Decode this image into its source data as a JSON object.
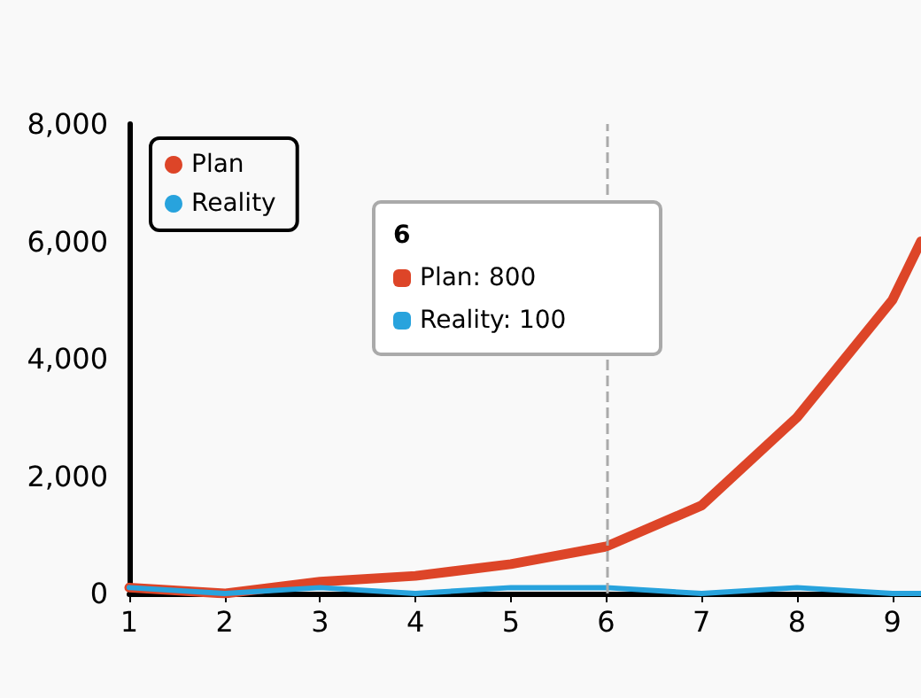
{
  "chart_data": {
    "type": "line",
    "x": [
      1,
      2,
      3,
      4,
      5,
      6,
      7,
      8,
      9,
      9.3
    ],
    "series": [
      {
        "name": "Plan",
        "color": "#dd4528",
        "values": [
          100,
          0,
          200,
          300,
          500,
          800,
          1500,
          3000,
          5000,
          6000
        ]
      },
      {
        "name": "Reality",
        "color": "#28a3dd",
        "values": [
          100,
          0,
          100,
          0,
          100,
          100,
          0,
          100,
          0,
          0
        ]
      }
    ],
    "xlim": [
      1,
      9.3
    ],
    "xticks": [
      1,
      2,
      3,
      4,
      5,
      6,
      7,
      8,
      9
    ],
    "ylim": [
      0,
      8000
    ],
    "yticks": [
      {
        "value": 0,
        "label": "0"
      },
      {
        "value": 2000,
        "label": "2,000"
      },
      {
        "value": 4000,
        "label": "4,000"
      },
      {
        "value": 6000,
        "label": "6,000"
      },
      {
        "value": 8000,
        "label": "8,000"
      }
    ],
    "ref_lines": [
      {
        "axis": "x",
        "value": 6,
        "color": "#aaaaaa",
        "line_style": "dashed"
      }
    ],
    "annotations": [
      "6",
      "Plan: 800",
      "Reality: 100"
    ],
    "legend": "top left",
    "grid": false,
    "marker": "none",
    "line_style": "solid"
  }
}
